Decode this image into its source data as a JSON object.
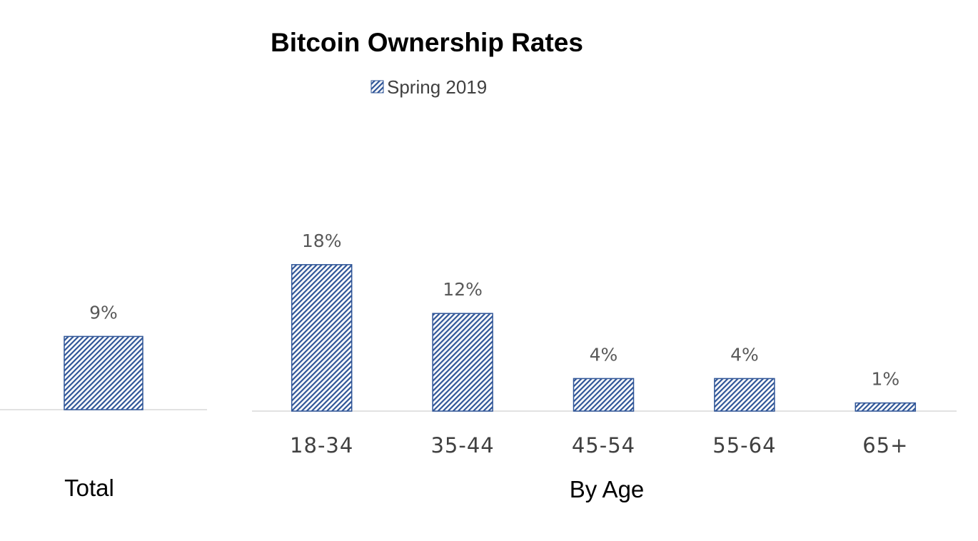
{
  "chart_data": {
    "type": "bar",
    "title": "Bitcoin Ownership Rates",
    "legend": {
      "entries": [
        "Spring 2019"
      ],
      "placement": "top-center"
    },
    "series": [
      {
        "name": "Spring 2019"
      }
    ],
    "pattern_color": "#2F5597",
    "grid": false,
    "panels": [
      {
        "group_label": "Total",
        "categories": [
          ""
        ],
        "values": [
          9
        ],
        "data_labels": [
          "9%"
        ],
        "ylim": [
          0,
          20
        ]
      },
      {
        "group_label": "By Age",
        "categories": [
          "18-34",
          "35-44",
          "45-54",
          "55-64",
          "65+"
        ],
        "values": [
          18,
          12,
          4,
          4,
          1
        ],
        "data_labels": [
          "18%",
          "12%",
          "4%",
          "4%",
          "1%"
        ],
        "ylim": [
          0,
          20
        ]
      }
    ]
  }
}
